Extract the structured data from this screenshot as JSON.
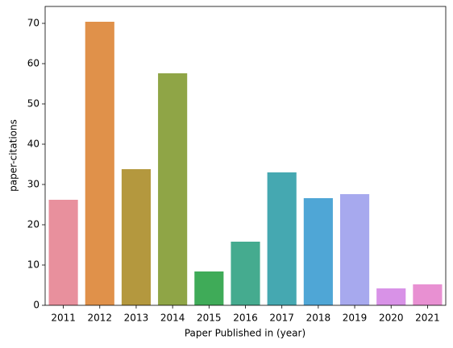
{
  "chart_data": {
    "type": "bar",
    "xlabel": "Paper Published in (year)",
    "ylabel": "paper-citations",
    "categories": [
      "2011",
      "2012",
      "2013",
      "2014",
      "2015",
      "2016",
      "2017",
      "2018",
      "2019",
      "2020",
      "2021"
    ],
    "values": [
      26.2,
      70.4,
      33.8,
      57.6,
      8.4,
      15.8,
      33,
      26.6,
      27.6,
      4.2,
      5.2
    ],
    "colors": [
      "#e8909d",
      "#e0914a",
      "#b4983e",
      "#8fa546",
      "#3fab58",
      "#45ab8f",
      "#45a8b1",
      "#4fa6d6",
      "#a7a9ee",
      "#d892e7",
      "#e890d2"
    ],
    "ylim": [
      0,
      74.2
    ],
    "yticks": [
      0,
      10,
      20,
      30,
      40,
      50,
      60,
      70
    ]
  }
}
